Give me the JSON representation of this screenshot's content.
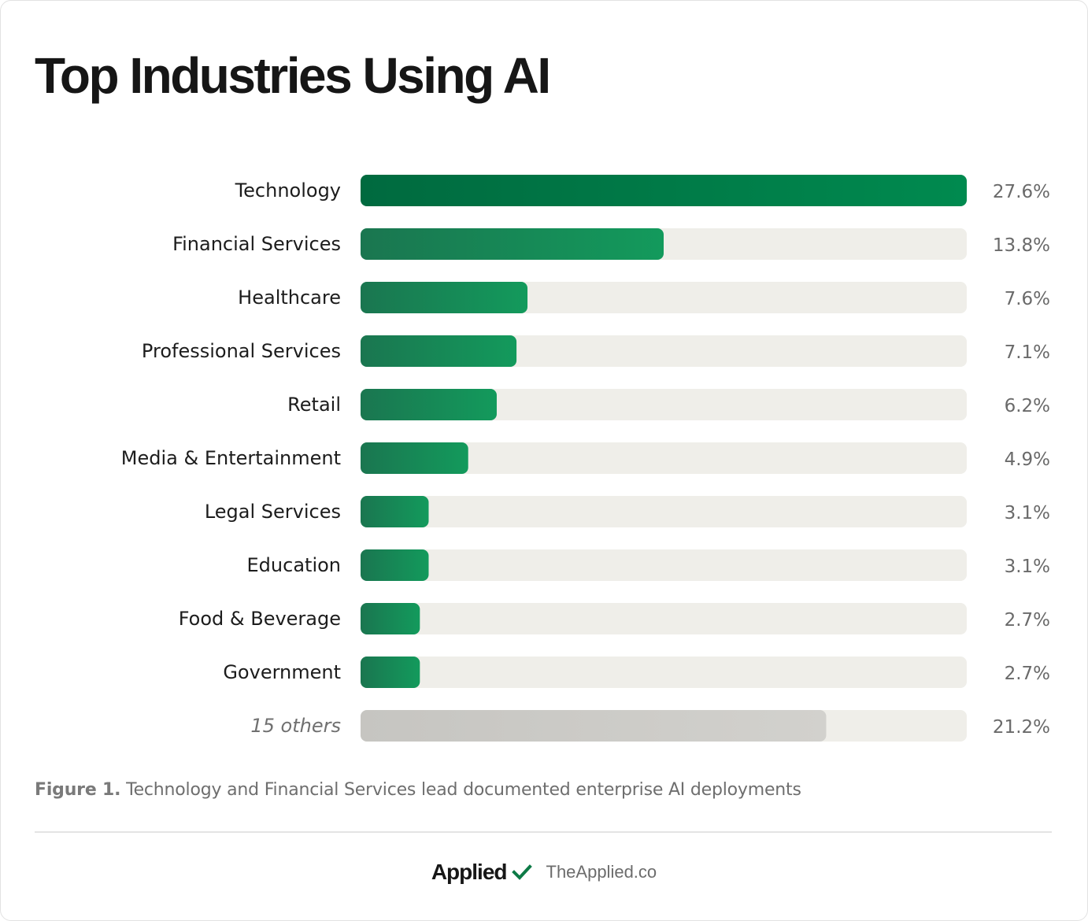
{
  "title": "Top Industries Using AI",
  "caption": {
    "prefix": "Figure 1.",
    "text": "Technology and Financial Services lead documented enterprise AI deployments"
  },
  "footer": {
    "brand": "Applied",
    "brand_icon": "check-icon",
    "site": "TheApplied.co"
  },
  "colors": {
    "track": "#efeee9",
    "green_dark": "#00693f",
    "green_light": "#0f8f55",
    "others_bar": "#cbcac6",
    "check": "#0d7a46"
  },
  "chart_data": {
    "type": "bar",
    "orientation": "horizontal",
    "title": "Top Industries Using AI",
    "categories": [
      "Technology",
      "Financial Services",
      "Healthcare",
      "Professional Services",
      "Retail",
      "Media & Entertainment",
      "Legal Services",
      "Education",
      "Food & Beverage",
      "Government",
      "15 others"
    ],
    "values": [
      27.6,
      13.8,
      7.6,
      7.1,
      6.2,
      4.9,
      3.1,
      3.1,
      2.7,
      2.7,
      21.2
    ],
    "value_labels": [
      "27.6%",
      "13.8%",
      "7.6%",
      "7.1%",
      "6.2%",
      "4.9%",
      "3.1%",
      "3.1%",
      "2.7%",
      "2.7%",
      "21.2%"
    ],
    "unit": "%",
    "xlim": [
      0,
      27.6
    ],
    "grid": false,
    "legend": "none"
  }
}
